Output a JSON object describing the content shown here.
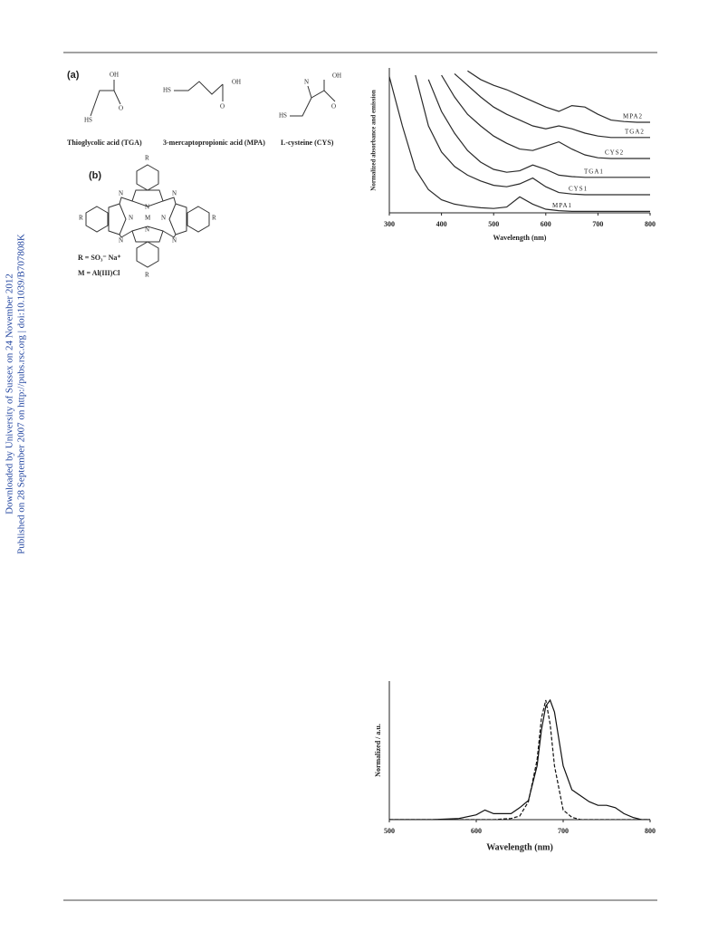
{
  "watermark": [
    "Downloaded by University of Sussex on 24 November 2012",
    "Published on 28 September 2007 on http://pubs.rsc.org | doi:10.1039/B707808K"
  ],
  "figure_a": {
    "label": "(a)",
    "oh": "OH",
    "o": "O",
    "hs": "HS",
    "n": "N",
    "compounds": [
      "Thioglycolic acid (TGA)",
      "3-mercaptopropionic acid (MPA)",
      "L-cysteine (CYS)"
    ]
  },
  "figure_b": {
    "label": "(b)",
    "r": "R",
    "n": "N",
    "m": "M",
    "r_def": "R = SO₃⁻ Na⁺",
    "m_def": "M = Al(III)Cl"
  },
  "chart_data": [
    {
      "type": "line",
      "xlabel": "Wavelength (nm)",
      "ylabel": "Normalized absorbance and emission",
      "x": [
        300,
        325,
        350,
        375,
        400,
        425,
        450,
        475,
        500,
        525,
        550,
        575,
        600,
        625,
        650,
        675,
        700,
        725,
        750,
        775,
        800
      ],
      "xlim": [
        300,
        800
      ],
      "xticks": [
        300,
        400,
        500,
        600,
        700,
        800
      ],
      "ylim": [
        0,
        10
      ],
      "series": [
        {
          "name": "MPA2",
          "color": "#2a2a2a",
          "values": [
            null,
            null,
            null,
            null,
            null,
            null,
            9.8,
            9.2,
            8.8,
            8.5,
            8.1,
            7.7,
            7.3,
            7.0,
            7.4,
            7.3,
            6.8,
            6.4,
            6.3,
            6.25,
            6.25
          ]
        },
        {
          "name": "TGA2",
          "color": "#2a2a2a",
          "values": [
            null,
            null,
            null,
            null,
            null,
            9.6,
            8.8,
            8.0,
            7.3,
            6.8,
            6.4,
            6.0,
            5.8,
            6.0,
            5.8,
            5.5,
            5.3,
            5.2,
            5.2,
            5.2,
            5.2
          ]
        },
        {
          "name": "CYS2",
          "color": "#2a2a2a",
          "values": [
            null,
            null,
            null,
            null,
            9.5,
            8.0,
            6.8,
            6.0,
            5.3,
            4.8,
            4.4,
            4.3,
            4.6,
            4.9,
            4.4,
            4.0,
            3.8,
            3.75,
            3.75,
            3.75,
            3.75
          ]
        },
        {
          "name": "TGA1",
          "color": "#2a2a2a",
          "values": [
            null,
            null,
            null,
            9.2,
            7.0,
            5.5,
            4.3,
            3.5,
            3.0,
            2.8,
            2.9,
            3.3,
            3.0,
            2.6,
            2.5,
            2.45,
            2.45,
            2.45,
            2.45,
            2.45,
            2.45
          ]
        },
        {
          "name": "CYS1",
          "color": "#2a2a2a",
          "values": [
            null,
            null,
            9.5,
            6.0,
            4.2,
            3.2,
            2.6,
            2.2,
            1.9,
            1.8,
            2.0,
            2.4,
            1.8,
            1.4,
            1.3,
            1.25,
            1.25,
            1.25,
            1.25,
            1.25,
            1.25
          ]
        },
        {
          "name": "MPA1",
          "color": "#2a2a2a",
          "values": [
            9.4,
            6.0,
            3.0,
            1.6,
            0.9,
            0.6,
            0.45,
            0.35,
            0.3,
            0.4,
            1.1,
            0.6,
            0.25,
            0.15,
            0.1,
            0.1,
            0.1,
            0.1,
            0.1,
            0.1,
            0.1
          ]
        }
      ]
    },
    {
      "type": "line",
      "xlabel": "Wavelength (nm)",
      "ylabel": "Normalized / a.u.",
      "x": [
        500,
        550,
        580,
        600,
        610,
        620,
        640,
        650,
        660,
        670,
        675,
        680,
        685,
        690,
        700,
        710,
        720,
        730,
        740,
        750,
        760,
        770,
        780,
        790,
        800
      ],
      "xlim": [
        500,
        800
      ],
      "xticks": [
        500,
        600,
        700,
        800
      ],
      "ylim": [
        0,
        1
      ],
      "series": [
        {
          "color": "#111111",
          "dashed": false,
          "values": [
            0,
            0,
            0.01,
            0.04,
            0.08,
            0.05,
            0.05,
            0.1,
            0.16,
            0.45,
            0.75,
            0.95,
            1.0,
            0.9,
            0.45,
            0.25,
            0.2,
            0.15,
            0.12,
            0.12,
            0.1,
            0.05,
            0.02,
            0,
            0
          ]
        },
        {
          "color": "#111111",
          "dashed": true,
          "values": [
            0,
            0,
            0,
            0,
            0,
            0,
            0.01,
            0.03,
            0.15,
            0.5,
            0.85,
            1.0,
            0.8,
            0.45,
            0.08,
            0.02,
            0,
            0,
            0,
            0,
            0,
            0,
            0,
            0,
            0
          ]
        }
      ]
    }
  ]
}
